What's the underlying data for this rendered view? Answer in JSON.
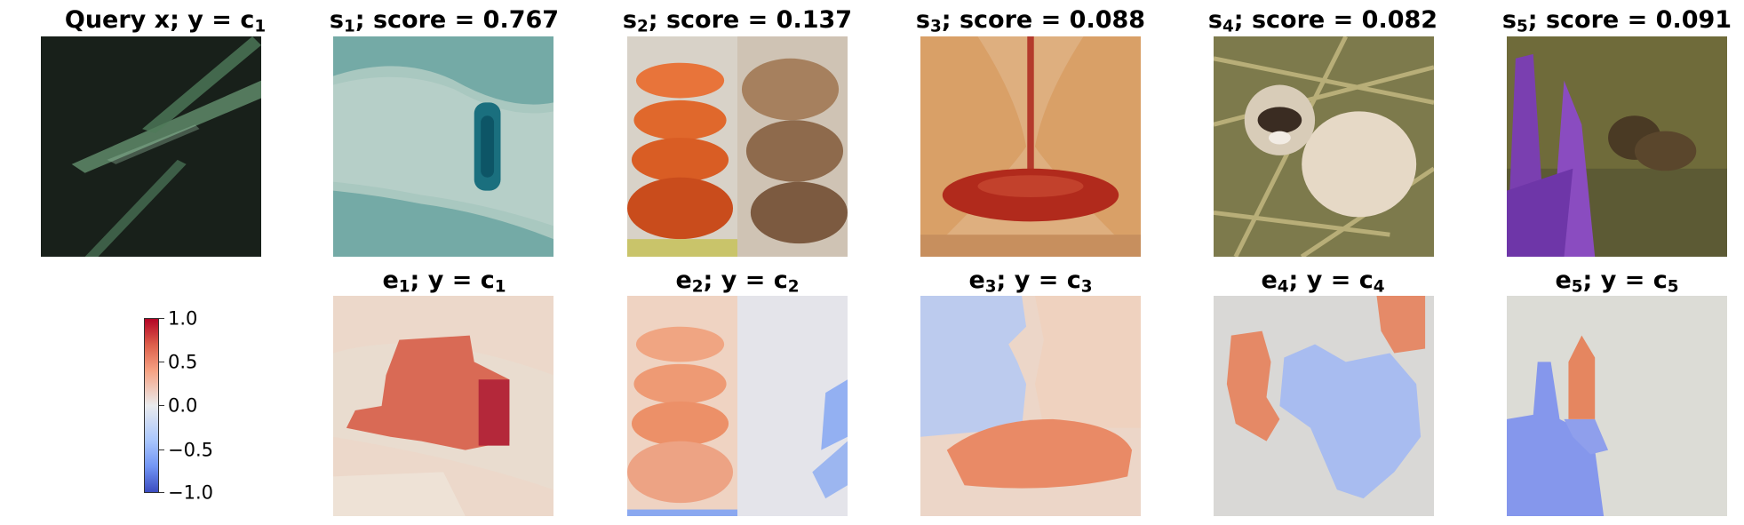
{
  "query": {
    "title_main": "Query x; y = c",
    "title_sub": "1"
  },
  "similar": [
    {
      "name": "s",
      "idx": "1",
      "score_label": "; score = 0.767"
    },
    {
      "name": "s",
      "idx": "2",
      "score_label": "; score = 0.137"
    },
    {
      "name": "s",
      "idx": "3",
      "score_label": "; score = 0.088"
    },
    {
      "name": "s",
      "idx": "4",
      "score_label": "; score = 0.082"
    },
    {
      "name": "s",
      "idx": "5",
      "score_label": "; score = 0.091"
    }
  ],
  "explanations": [
    {
      "name": "e",
      "idx": "1",
      "label": "; y = c",
      "label_idx": "1"
    },
    {
      "name": "e",
      "idx": "2",
      "label": "; y = c",
      "label_idx": "2"
    },
    {
      "name": "e",
      "idx": "3",
      "label": "; y = c",
      "label_idx": "3"
    },
    {
      "name": "e",
      "idx": "4",
      "label": "; y = c",
      "label_idx": "4"
    },
    {
      "name": "e",
      "idx": "5",
      "label": "; y = c",
      "label_idx": "5"
    }
  ],
  "colorbar": {
    "ticks": [
      "1.0",
      "0.5",
      "0.0",
      "−0.5",
      "−1.0"
    ],
    "colormap": [
      "#b40426",
      "#f6a283",
      "#eaebed",
      "#aac7fd",
      "#3b4cc0"
    ]
  }
}
